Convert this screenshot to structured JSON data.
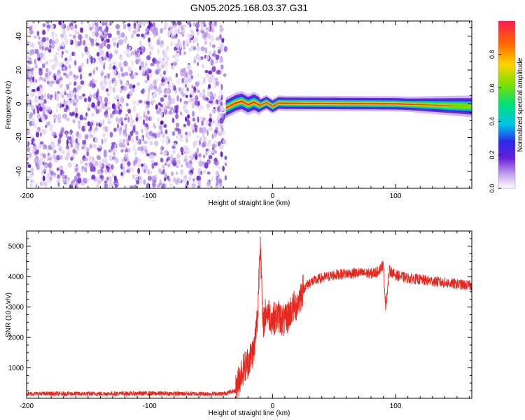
{
  "title": "GN05.2025.168.03.37.G31",
  "chart_data": [
    {
      "type": "heatmap",
      "xlabel": "Height of straight line (km)",
      "ylabel": "Frequency (Hz)",
      "xlim": [
        -200,
        162
      ],
      "ylim": [
        -50,
        49
      ],
      "xticks": [
        -200,
        -100,
        0,
        100
      ],
      "yticks": [
        -40,
        -20,
        0,
        20,
        40
      ],
      "noise_region_x": [
        -200,
        -38
      ],
      "noise_region_level": [
        0.0,
        0.25
      ],
      "signal_region_x": [
        -38,
        162
      ],
      "signal_centerline": [
        {
          "x": -38,
          "y": -2.5
        },
        {
          "x": -30,
          "y": 0.5
        },
        {
          "x": -25,
          "y": 1.5
        },
        {
          "x": -20,
          "y": -0.5
        },
        {
          "x": -15,
          "y": 1.0
        },
        {
          "x": -10,
          "y": -1.0
        },
        {
          "x": -5,
          "y": 0.8
        },
        {
          "x": 0,
          "y": -1.5
        },
        {
          "x": 5,
          "y": 0.5
        },
        {
          "x": 10,
          "y": 0.3
        },
        {
          "x": 50,
          "y": 0.2
        },
        {
          "x": 100,
          "y": 0.0
        },
        {
          "x": 162,
          "y": -1.5
        }
      ],
      "colorbar": {
        "label": "Normalized spectral amplitude",
        "ticks": [
          0.0,
          0.2,
          0.4,
          0.6,
          0.8
        ],
        "range": [
          0,
          1
        ]
      }
    },
    {
      "type": "line",
      "xlabel": "Height of straight line (km)",
      "ylabel": "SNR (10 * v/v)",
      "xlim": [
        -200,
        162
      ],
      "ylim": [
        0,
        5500
      ],
      "xticks": [
        -200,
        -100,
        0,
        100
      ],
      "yticks": [
        1000,
        2000,
        3000,
        4000,
        5000
      ],
      "series": [
        {
          "color": "#e8281f",
          "x": [
            -200,
            -150,
            -100,
            -60,
            -40,
            -30,
            -25,
            -20,
            -15,
            -12,
            -10,
            -8,
            -5,
            0,
            5,
            10,
            15,
            20,
            25,
            30,
            40,
            50,
            60,
            70,
            80,
            85,
            90,
            92,
            95,
            100,
            110,
            120,
            130,
            140,
            150,
            162
          ],
          "values": [
            150,
            150,
            160,
            150,
            150,
            250,
            900,
            1200,
            1600,
            2800,
            5400,
            2400,
            2900,
            2600,
            2700,
            2500,
            2900,
            3100,
            3600,
            3800,
            3950,
            4050,
            4100,
            4120,
            4100,
            4150,
            4400,
            3000,
            4200,
            4050,
            3950,
            3900,
            3850,
            3800,
            3750,
            3700
          ]
        }
      ]
    }
  ]
}
